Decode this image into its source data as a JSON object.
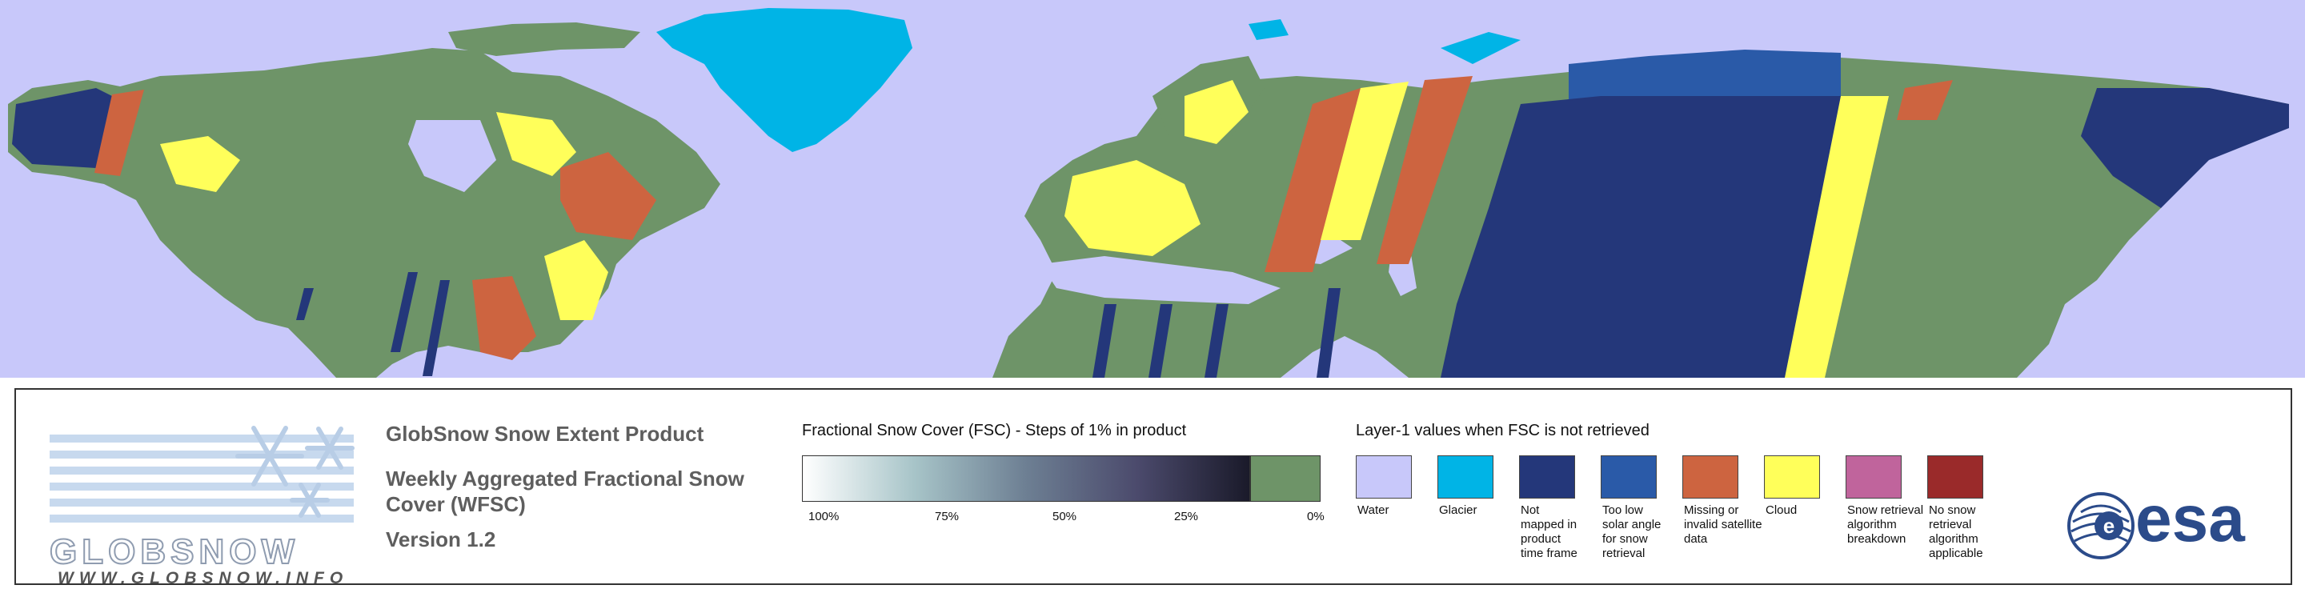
{
  "logo": {
    "brand": "GLOBSNOW",
    "url": "WWW.GLOBSNOW.INFO"
  },
  "product": {
    "title": "GlobSnow Snow Extent Product",
    "subtitle_line1": "Weekly Aggregated Fractional Snow",
    "subtitle_line2": "Cover (WFSC)",
    "version": "Version 1.2"
  },
  "fsc_scale": {
    "heading": "Fractional Snow Cover (FSC) - Steps of 1% in product",
    "ticks": [
      "100%",
      "75%",
      "50%",
      "25%",
      "0%"
    ],
    "gradient_start": "#ffffff",
    "gradient_end": "#1a1a2a",
    "zero_color": "#6e9468"
  },
  "layer1": {
    "heading": "Layer-1 values when FSC is not retrieved",
    "classes": [
      {
        "label": [
          "Water"
        ],
        "color": "#c8c8fa"
      },
      {
        "label": [
          "Glacier"
        ],
        "color": "#00b4e6"
      },
      {
        "label": [
          "Not",
          "mapped in",
          "product",
          "time frame"
        ],
        "color": "#24377a"
      },
      {
        "label": [
          "Too low",
          "solar angle",
          "for snow",
          "retrieval"
        ],
        "color": "#2a5aa8"
      },
      {
        "label": [
          "Missing or",
          "invalid satellite",
          "data"
        ],
        "color": "#cd6440"
      },
      {
        "label": [
          "Cloud"
        ],
        "color": "#ffff5a"
      },
      {
        "label": [
          "Snow retrieval",
          "algorithm",
          "breakdown"
        ],
        "color": "#c0649c"
      },
      {
        "label": [
          "No snow",
          "retrieval",
          "algorithm",
          "applicable"
        ],
        "color": "#9a2a2a"
      }
    ]
  },
  "esa": {
    "name": "esa"
  },
  "map": {
    "water_color": "#c8c8fa",
    "land_color": "#6e9468",
    "glacier_color": "#00b4e6",
    "not_mapped_color": "#24377a",
    "cloud_color": "#ffff5a",
    "missing_color": "#cd6440",
    "low_sun_color": "#2a5aa8"
  }
}
